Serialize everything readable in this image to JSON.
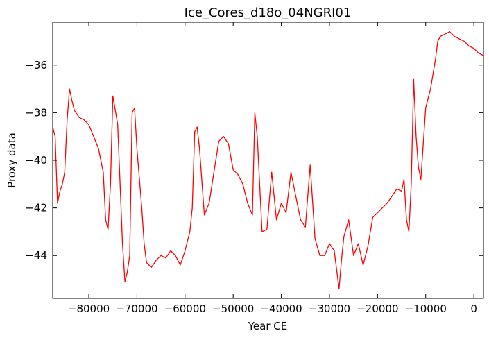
{
  "chart_data": {
    "type": "line",
    "title": "Ice_Cores_d18o_04NGRI01",
    "xlabel": "Year CE",
    "ylabel": "Proxy data",
    "xlim": [
      -87500,
      2000
    ],
    "ylim": [
      -45.8,
      -34.2
    ],
    "xticks": [
      -80000,
      -70000,
      -60000,
      -50000,
      -40000,
      -30000,
      -20000,
      -10000,
      0
    ],
    "yticks": [
      -44,
      -42,
      -40,
      -38,
      -36
    ],
    "grid": false,
    "series": [
      {
        "color": "#ff0000",
        "x": [
          -87500,
          -87000,
          -86500,
          -86000,
          -85500,
          -85000,
          -84500,
          -84000,
          -83500,
          -83000,
          -82000,
          -81000,
          -80000,
          -79000,
          -78000,
          -77000,
          -76500,
          -76000,
          -75500,
          -75000,
          -74000,
          -73000,
          -72500,
          -72000,
          -71500,
          -71000,
          -70500,
          -70000,
          -69000,
          -68500,
          -68000,
          -67000,
          -66000,
          -65000,
          -64000,
          -63000,
          -62000,
          -61000,
          -60000,
          -59000,
          -58500,
          -58000,
          -57500,
          -57000,
          -56000,
          -55000,
          -54000,
          -53000,
          -52000,
          -51000,
          -50000,
          -49000,
          -48000,
          -47000,
          -46000,
          -45500,
          -45000,
          -44000,
          -43000,
          -42000,
          -41000,
          -40000,
          -39000,
          -38000,
          -37000,
          -36000,
          -35000,
          -34000,
          -33000,
          -32000,
          -31000,
          -30000,
          -29000,
          -28000,
          -27500,
          -27000,
          -26000,
          -25000,
          -24000,
          -23000,
          -22000,
          -21000,
          -20000,
          -19000,
          -18000,
          -17000,
          -16000,
          -15000,
          -14500,
          -14000,
          -13500,
          -13000,
          -12500,
          -12000,
          -11500,
          -11000,
          -10000,
          -9000,
          -8000,
          -7500,
          -7000,
          -6000,
          -5000,
          -4000,
          -3000,
          -2000,
          -1000,
          0,
          1000,
          2000
        ],
        "y": [
          -38.6,
          -39.0,
          -41.8,
          -41.3,
          -41.0,
          -40.5,
          -38.3,
          -37.0,
          -37.5,
          -37.9,
          -38.2,
          -38.3,
          -38.5,
          -39.0,
          -39.5,
          -40.5,
          -42.5,
          -42.9,
          -41.0,
          -37.3,
          -38.5,
          -43.5,
          -45.1,
          -44.7,
          -44.0,
          -38.0,
          -37.8,
          -39.5,
          -42.0,
          -43.5,
          -44.3,
          -44.5,
          -44.2,
          -44.0,
          -44.1,
          -43.8,
          -44.0,
          -44.4,
          -43.8,
          -43.0,
          -42.0,
          -38.8,
          -38.6,
          -39.5,
          -42.3,
          -41.8,
          -40.5,
          -39.2,
          -39.0,
          -39.3,
          -40.4,
          -40.6,
          -41.0,
          -41.8,
          -42.3,
          -38.0,
          -39.0,
          -43.0,
          -42.9,
          -40.5,
          -42.5,
          -41.8,
          -42.2,
          -40.5,
          -41.5,
          -42.5,
          -42.8,
          -40.2,
          -43.3,
          -44.0,
          -44.0,
          -43.5,
          -43.8,
          -45.4,
          -44.2,
          -43.2,
          -42.5,
          -44.0,
          -43.5,
          -44.4,
          -43.6,
          -42.4,
          -42.2,
          -42.0,
          -41.8,
          -41.5,
          -41.2,
          -41.3,
          -40.8,
          -42.5,
          -43.0,
          -41.0,
          -36.6,
          -39.0,
          -40.3,
          -40.8,
          -37.8,
          -37.0,
          -35.8,
          -35.0,
          -34.8,
          -34.7,
          -34.6,
          -34.8,
          -34.9,
          -35.0,
          -35.2,
          -35.3,
          -35.5,
          -35.6
        ]
      }
    ]
  }
}
